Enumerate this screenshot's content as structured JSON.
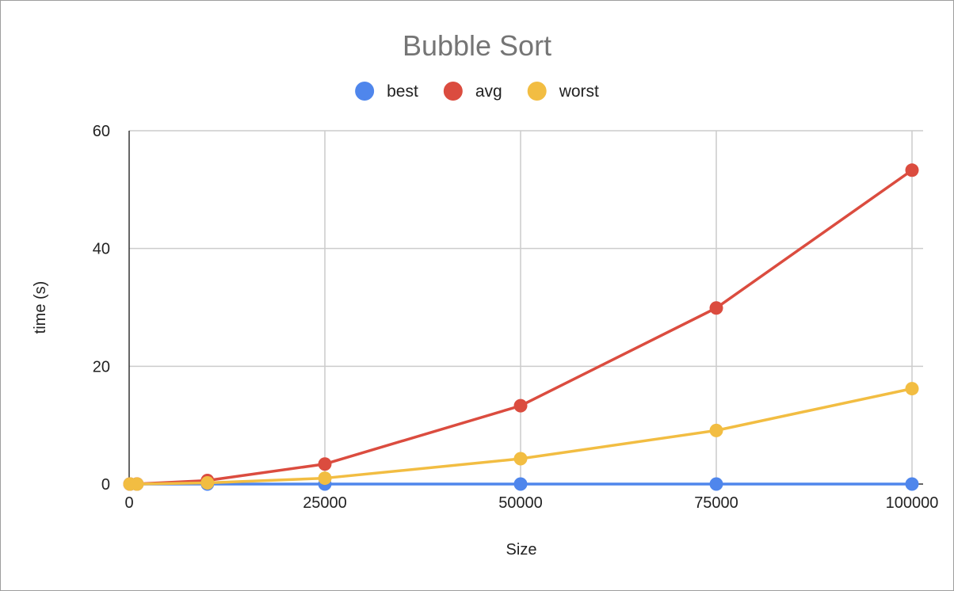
{
  "chart_data": {
    "type": "line",
    "title": "Bubble Sort",
    "xlabel": "Size",
    "ylabel": "time (s)",
    "xlim": [
      0,
      100000
    ],
    "ylim": [
      0,
      60
    ],
    "x_ticks": [
      "0",
      "25000",
      "50000",
      "75000",
      "100000"
    ],
    "y_ticks": [
      "0",
      "20",
      "40",
      "60"
    ],
    "x": [
      100,
      1000,
      10000,
      25000,
      50000,
      75000,
      100000
    ],
    "series": [
      {
        "name": "best",
        "color": "#4f86ec",
        "values": [
          0,
          0,
          0,
          0,
          0,
          0,
          0
        ]
      },
      {
        "name": "avg",
        "color": "#db4c3f",
        "values": [
          0.001,
          0.01,
          0.6,
          3.4,
          13.3,
          29.9,
          53.3
        ]
      },
      {
        "name": "worst",
        "color": "#f2bd42",
        "values": [
          0.0005,
          0.003,
          0.2,
          1.0,
          4.3,
          9.1,
          16.2
        ]
      }
    ],
    "grid": true,
    "legend_position": "top-center"
  }
}
